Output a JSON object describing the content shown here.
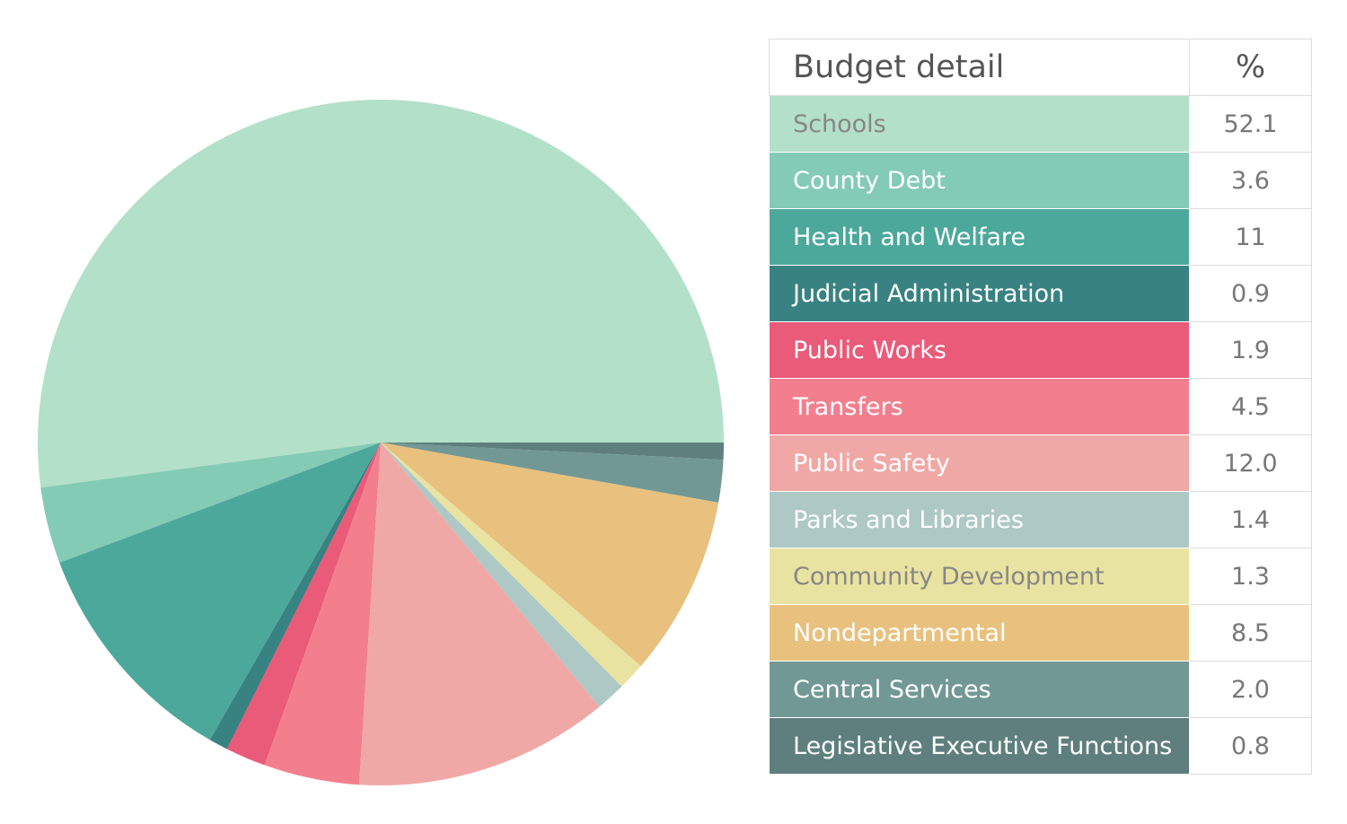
{
  "chart_data": {
    "type": "pie",
    "title": "",
    "table_header": {
      "label": "Budget detail",
      "value": "%"
    },
    "start_angle_deg": 0,
    "direction": "counterclockwise",
    "categories": [
      "Schools",
      "County Debt",
      "Health and Welfare",
      "Judicial Administration",
      "Public Works",
      "Transfers",
      "Public Safety",
      "Parks and Libraries",
      "Community Development",
      "Nondepartmental",
      "Central Services",
      "Legislative Executive Functions"
    ],
    "values": [
      52.1,
      3.6,
      11,
      0.9,
      1.9,
      4.5,
      12.0,
      1.4,
      1.3,
      8.5,
      2.0,
      0.8
    ],
    "value_labels": [
      "52.1",
      "3.6",
      "11",
      "0.9",
      "1.9",
      "4.5",
      "12.0",
      "1.4",
      "1.3",
      "8.5",
      "2.0",
      "0.8"
    ],
    "colors": [
      "#b3e0c8",
      "#84cbb5",
      "#4da89c",
      "#398282",
      "#ea5a79",
      "#f37f8e",
      "#f0a8a6",
      "#adc8c5",
      "#e9e3a1",
      "#e8c17e",
      "#729896",
      "#5e7f7e"
    ],
    "label_text_colors": [
      "#868686",
      "#ffffff",
      "#ffffff",
      "#ffffff",
      "#ffffff",
      "#ffffff",
      "#ffffff",
      "#ffffff",
      "#868686",
      "#ffffff",
      "#ffffff",
      "#ffffff"
    ]
  }
}
